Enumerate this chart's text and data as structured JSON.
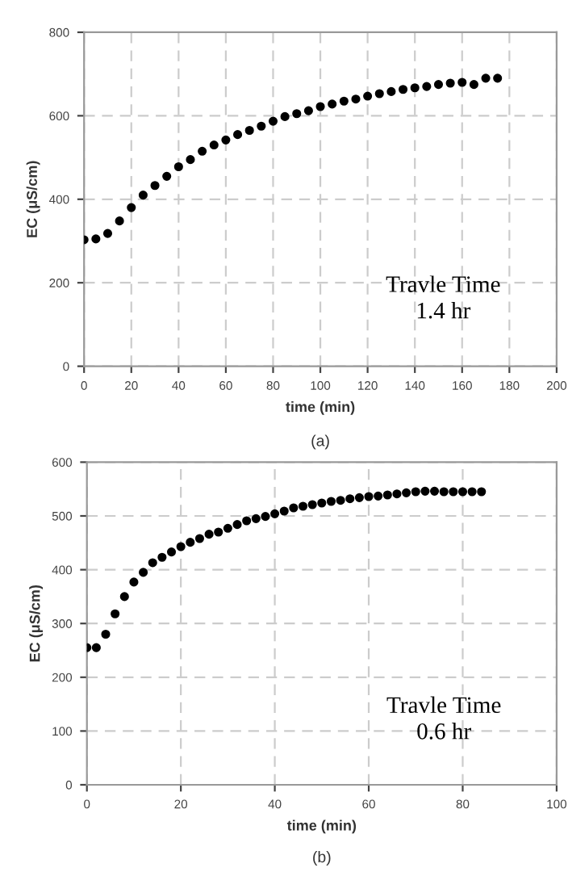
{
  "chart_data": [
    {
      "type": "scatter",
      "xlabel": "time (min)",
      "ylabel": "EC (μS/cm)",
      "marker": "circle",
      "grid": true,
      "legend": false,
      "xlim": [
        0,
        200
      ],
      "xticks": [
        0,
        20,
        40,
        60,
        80,
        100,
        120,
        140,
        160,
        180,
        200
      ],
      "ylim": [
        0,
        800
      ],
      "yticks": [
        0,
        200,
        400,
        600,
        800
      ],
      "annotations": [
        "Travle Time\n1.4 hr",
        "(a)"
      ],
      "series": [
        {
          "color": "#000000",
          "x": [
            0,
            5,
            10,
            15,
            20,
            25,
            30,
            35,
            40,
            45,
            50,
            55,
            60,
            65,
            70,
            75,
            80,
            85,
            90,
            95,
            100,
            105,
            110,
            115,
            120,
            125,
            130,
            135,
            140,
            145,
            150,
            155,
            160,
            165,
            170,
            175
          ],
          "values": [
            303,
            305,
            318,
            348,
            380,
            410,
            433,
            455,
            478,
            495,
            515,
            530,
            542,
            555,
            565,
            575,
            587,
            598,
            605,
            612,
            622,
            628,
            635,
            640,
            647,
            653,
            658,
            663,
            667,
            670,
            675,
            678,
            680,
            675,
            690,
            690
          ]
        }
      ]
    },
    {
      "type": "scatter",
      "xlabel": "time (min)",
      "ylabel": "EC (μS/cm)",
      "marker": "circle",
      "grid": true,
      "legend": false,
      "xlim": [
        0,
        100
      ],
      "xticks": [
        0,
        20,
        40,
        60,
        80,
        100
      ],
      "ylim": [
        0,
        600
      ],
      "yticks": [
        0,
        100,
        200,
        300,
        400,
        500,
        600
      ],
      "annotations": [
        "Travle Time\n0.6 hr",
        "(b)"
      ],
      "series": [
        {
          "color": "#000000",
          "x": [
            0,
            2,
            4,
            6,
            8,
            10,
            12,
            14,
            16,
            18,
            20,
            22,
            24,
            26,
            28,
            30,
            32,
            34,
            36,
            38,
            40,
            42,
            44,
            46,
            48,
            50,
            52,
            54,
            56,
            58,
            60,
            62,
            64,
            66,
            68,
            70,
            72,
            74,
            76,
            78,
            80,
            82,
            84
          ],
          "values": [
            255,
            255,
            280,
            318,
            350,
            377,
            395,
            413,
            423,
            433,
            443,
            451,
            458,
            466,
            470,
            477,
            484,
            491,
            495,
            499,
            504,
            509,
            515,
            518,
            521,
            524,
            527,
            529,
            532,
            534,
            536,
            537,
            539,
            541,
            543,
            545,
            546,
            546,
            545,
            545,
            545,
            545,
            545
          ]
        }
      ]
    }
  ]
}
